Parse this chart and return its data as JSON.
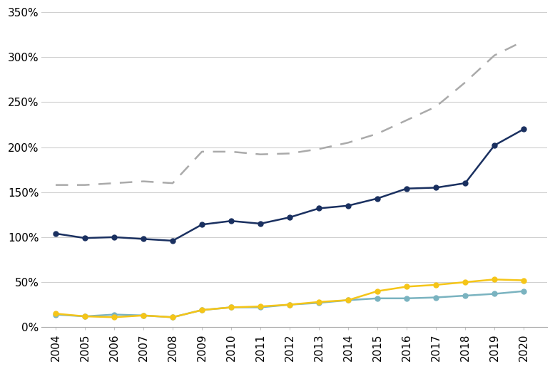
{
  "years": [
    2004,
    2005,
    2006,
    2007,
    2008,
    2009,
    2010,
    2011,
    2012,
    2013,
    2014,
    2015,
    2016,
    2017,
    2018,
    2019,
    2020
  ],
  "dark_navy": [
    104,
    99,
    100,
    98,
    96,
    114,
    118,
    115,
    122,
    132,
    135,
    143,
    154,
    155,
    160,
    202,
    220
  ],
  "gray_dashed": [
    158,
    158,
    160,
    162,
    160,
    195,
    195,
    192,
    193,
    198,
    205,
    215,
    230,
    245,
    272,
    302,
    318
  ],
  "teal": [
    14,
    12,
    14,
    13,
    11,
    19,
    22,
    22,
    25,
    27,
    30,
    32,
    32,
    33,
    35,
    37,
    40
  ],
  "yellow": [
    15,
    12,
    11,
    13,
    11,
    19,
    22,
    23,
    25,
    28,
    30,
    40,
    45,
    47,
    50,
    53,
    52
  ],
  "navy_color": "#1a3060",
  "gray_color": "#aaaaaa",
  "teal_color": "#7ab3c0",
  "yellow_color": "#f5c518",
  "bg_color": "#ffffff",
  "grid_color": "#d0d0d0",
  "ylim": [
    0,
    350
  ],
  "yticks": [
    0,
    50,
    100,
    150,
    200,
    250,
    300,
    350
  ],
  "tick_fontsize": 11
}
